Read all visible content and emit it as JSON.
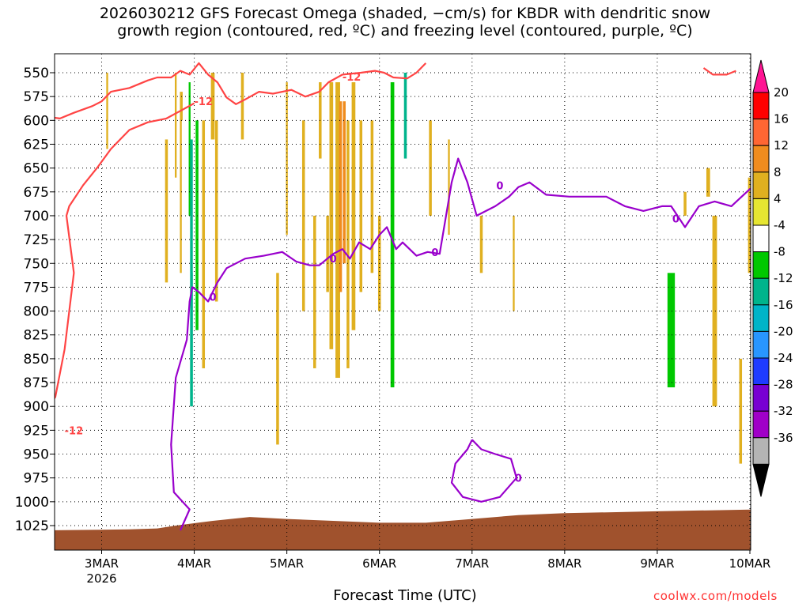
{
  "title": {
    "line1": "2026030212 GFS Forecast Omega (shaded, −cm/s) for KBDR with dendritic snow",
    "line2": "growth region (contoured, red, ºC) and freezing level (contoured, purple, ºC)"
  },
  "xlabel": "Forecast Time (UTC)",
  "credit": "coolwx.com/models",
  "chart_data": {
    "type": "heatmap",
    "x_categories": [
      "3MAR",
      "4MAR",
      "5MAR",
      "6MAR",
      "7MAR",
      "8MAR",
      "9MAR",
      "10MAR"
    ],
    "x_year_label": "2026",
    "y_ticks": [
      550,
      575,
      600,
      625,
      650,
      675,
      700,
      725,
      750,
      775,
      800,
      825,
      850,
      875,
      900,
      925,
      950,
      975,
      1000,
      1025
    ],
    "y_axis_inverted": true,
    "grid": true,
    "colorbar": {
      "ticks": [
        20,
        16,
        12,
        8,
        4,
        -4,
        -8,
        -12,
        -16,
        -20,
        -24,
        -28,
        -32,
        -36
      ],
      "colors": [
        "#ff0000",
        "#ff6633",
        "#f08c1e",
        "#e0b020",
        "#e6e632",
        "#ffffff",
        "#00c800",
        "#00b48c",
        "#00b4c8",
        "#2896ff",
        "#1e3cff",
        "#7800d2",
        "#a000c8",
        "#b4b4b4"
      ],
      "top_color": "#ff1493",
      "bottom_color": "#000000"
    },
    "contours": [
      {
        "label": "-12",
        "color": "#ff4444"
      },
      {
        "label": "0",
        "color": "#9900cc"
      }
    ]
  }
}
